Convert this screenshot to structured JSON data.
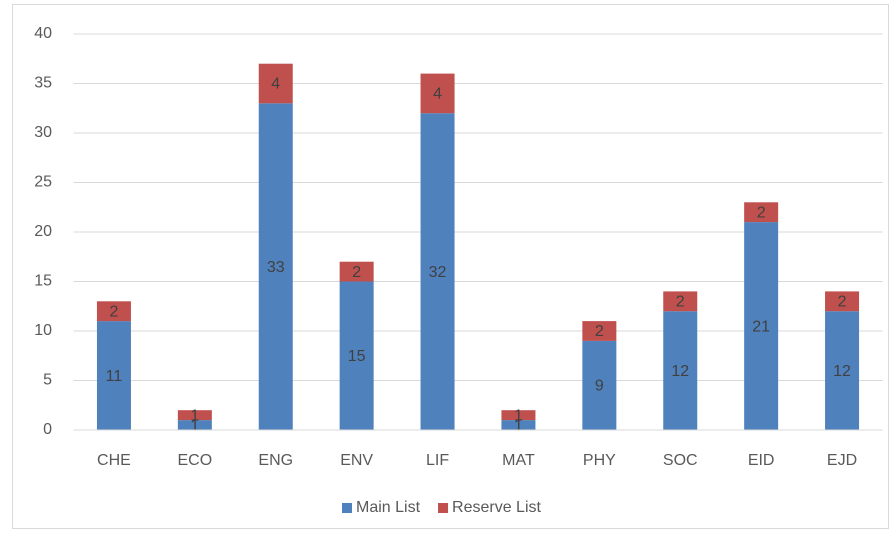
{
  "chart_data": {
    "type": "bar",
    "stacked": true,
    "categories": [
      "CHE",
      "ECO",
      "ENG",
      "ENV",
      "LIF",
      "MAT",
      "PHY",
      "SOC",
      "EID",
      "EJD"
    ],
    "series": [
      {
        "name": "Main List",
        "color": "#4f81bd",
        "values": [
          11,
          1,
          33,
          15,
          32,
          1,
          9,
          12,
          21,
          12
        ]
      },
      {
        "name": "Reserve List",
        "color": "#c0504d",
        "values": [
          2,
          1,
          4,
          2,
          4,
          1,
          2,
          2,
          2,
          2
        ]
      }
    ],
    "ylim": [
      0,
      40
    ],
    "yticks": [
      0,
      5,
      10,
      15,
      20,
      25,
      30,
      35,
      40
    ],
    "grid": true,
    "legend": "bottom"
  }
}
